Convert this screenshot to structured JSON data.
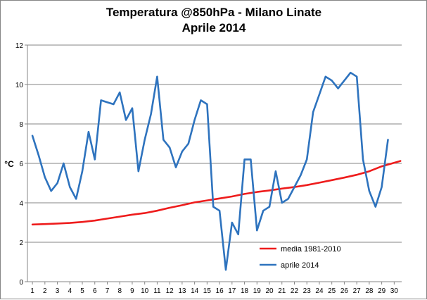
{
  "chart_data": {
    "type": "line",
    "title": "Temperatura @850hPa - Milano Linate",
    "subtitle": "Aprile 2014",
    "ylabel": "°C",
    "xlabel": "",
    "ylim": [
      0,
      12
    ],
    "xlim": [
      1,
      30
    ],
    "yticks": [
      0,
      2,
      4,
      6,
      8,
      10,
      12
    ],
    "xticks": [
      1,
      2,
      3,
      4,
      5,
      6,
      7,
      8,
      9,
      10,
      11,
      12,
      13,
      14,
      15,
      16,
      17,
      18,
      19,
      20,
      21,
      22,
      23,
      24,
      25,
      26,
      27,
      28,
      29,
      30
    ],
    "grid": "horizontal",
    "legend_position": "bottom-right",
    "series": [
      {
        "name": "media 1981-2010",
        "color": "#ee1c1c",
        "x": [
          1,
          2,
          3,
          4,
          5,
          6,
          7,
          8,
          9,
          10,
          11,
          12,
          13,
          14,
          15,
          16,
          17,
          18,
          19,
          20,
          21,
          22,
          23,
          24,
          25,
          26,
          27,
          28,
          29,
          30.5
        ],
        "values": [
          2.9,
          2.92,
          2.95,
          2.98,
          3.03,
          3.1,
          3.2,
          3.3,
          3.4,
          3.48,
          3.6,
          3.75,
          3.88,
          4.02,
          4.12,
          4.22,
          4.32,
          4.45,
          4.55,
          4.63,
          4.72,
          4.8,
          4.9,
          5.02,
          5.15,
          5.28,
          5.42,
          5.6,
          5.85,
          6.12
        ]
      },
      {
        "name": "aprile 2014",
        "color": "#2e73be",
        "x": [
          1,
          1.5,
          2,
          2.5,
          3,
          3.5,
          4,
          4.5,
          5,
          5.5,
          6,
          6.5,
          7,
          7.5,
          8,
          8.5,
          9,
          9.5,
          10,
          10.5,
          11,
          11.5,
          12,
          12.5,
          13,
          13.5,
          14,
          14.5,
          15,
          15.5,
          16,
          16.5,
          17,
          17.5,
          18,
          18.5,
          19,
          19.5,
          20,
          20.5,
          21,
          21.5,
          22,
          22.5,
          23,
          23.5,
          24,
          24.5,
          25,
          25.5,
          26,
          26.5,
          27,
          27.5,
          28,
          28.5,
          29,
          29.5
        ],
        "values": [
          7.4,
          6.4,
          5.3,
          4.6,
          5.0,
          6.0,
          4.8,
          4.2,
          5.6,
          7.6,
          6.2,
          9.2,
          9.1,
          9.0,
          9.6,
          8.2,
          8.8,
          5.6,
          7.2,
          8.5,
          10.4,
          7.2,
          6.8,
          5.8,
          6.6,
          7.0,
          8.2,
          9.2,
          9.0,
          3.8,
          3.6,
          0.6,
          3.0,
          2.4,
          6.2,
          6.2,
          2.6,
          3.6,
          3.8,
          5.6,
          4.0,
          4.2,
          4.8,
          5.4,
          6.2,
          8.6,
          9.5,
          10.4,
          10.2,
          9.8,
          10.2,
          10.6,
          10.4,
          6.2,
          4.6,
          3.8,
          4.8,
          7.2
        ]
      }
    ]
  }
}
